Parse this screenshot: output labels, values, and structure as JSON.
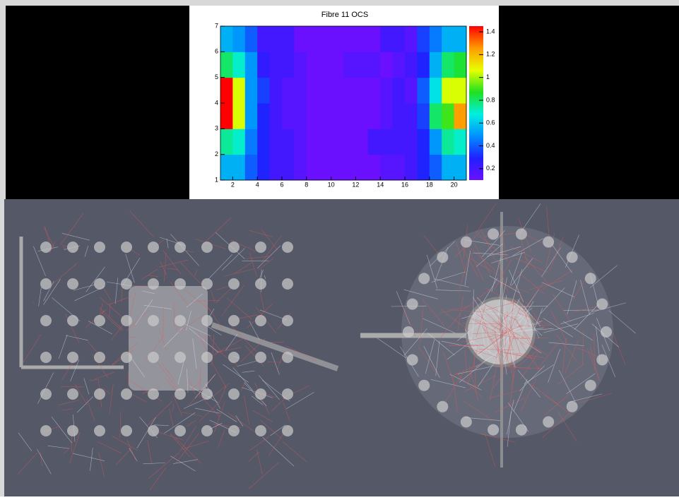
{
  "chart_data": {
    "type": "heatmap",
    "title": "Fibre 11 OCS",
    "xlim": [
      1,
      21
    ],
    "xticks": [
      2,
      4,
      6,
      8,
      10,
      12,
      14,
      16,
      18,
      20
    ],
    "ylim": [
      1,
      7
    ],
    "yticks": [
      1,
      2,
      3,
      4,
      5,
      6,
      7
    ],
    "zlim": [
      0.1,
      1.45
    ],
    "zticks": [
      0.2,
      0.4,
      0.6,
      0.8,
      1,
      1.2,
      1.4
    ],
    "colorscale": [
      "#6a10ff",
      "#2020ff",
      "#0090ff",
      "#00f0e0",
      "#20e020",
      "#e8ff00",
      "#ff9a00",
      "#ff0000"
    ],
    "z": [
      [
        0.55,
        0.55,
        0.4,
        0.3,
        0.2,
        0.2,
        0.15,
        0.1,
        0.1,
        0.1,
        0.1,
        0.1,
        0.1,
        0.15,
        0.15,
        0.2,
        0.3,
        0.4,
        0.55,
        0.55
      ],
      [
        0.75,
        0.7,
        0.45,
        0.3,
        0.2,
        0.2,
        0.15,
        0.1,
        0.1,
        0.1,
        0.1,
        0.1,
        0.2,
        0.2,
        0.2,
        0.2,
        0.3,
        0.5,
        0.75,
        0.7
      ],
      [
        1.45,
        1.05,
        0.5,
        0.3,
        0.2,
        0.15,
        0.15,
        0.1,
        0.1,
        0.1,
        0.1,
        0.1,
        0.1,
        0.15,
        0.2,
        0.2,
        0.35,
        0.8,
        0.9,
        1.25
      ],
      [
        1.45,
        1.05,
        0.5,
        0.35,
        0.2,
        0.15,
        0.15,
        0.1,
        0.1,
        0.1,
        0.1,
        0.1,
        0.1,
        0.15,
        0.2,
        0.15,
        0.4,
        0.65,
        1.05,
        1.05
      ],
      [
        0.8,
        0.7,
        0.5,
        0.25,
        0.2,
        0.2,
        0.15,
        0.1,
        0.1,
        0.1,
        0.15,
        0.15,
        0.15,
        0.1,
        0.15,
        0.2,
        0.3,
        0.55,
        0.8,
        0.85
      ],
      [
        0.55,
        0.5,
        0.4,
        0.2,
        0.2,
        0.2,
        0.1,
        0.1,
        0.1,
        0.1,
        0.1,
        0.1,
        0.1,
        0.2,
        0.2,
        0.15,
        0.35,
        0.45,
        0.55,
        0.55
      ]
    ]
  }
}
